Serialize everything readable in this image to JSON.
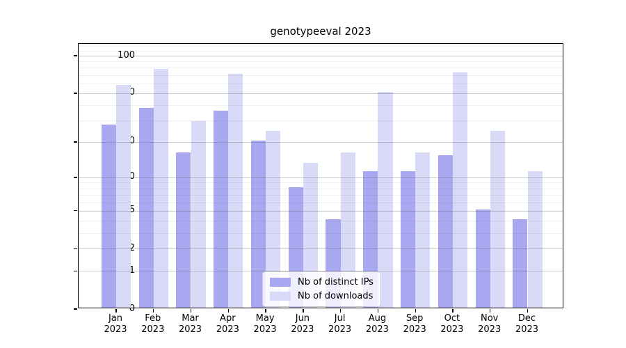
{
  "chart_data": {
    "type": "bar",
    "title": "genotypeeval 2023",
    "categories": [
      "Jan",
      "Feb",
      "Mar",
      "Apr",
      "May",
      "Jun",
      "Jul",
      "Aug",
      "Sep",
      "Oct",
      "Nov",
      "Dec"
    ],
    "year_label": "2023",
    "series": [
      {
        "name": "Nb of distinct IPs",
        "color": "#a8a8f0",
        "values": [
          27,
          37,
          16,
          35,
          20,
          8,
          4,
          11,
          11,
          15,
          5,
          4
        ]
      },
      {
        "name": "Nb of downloads",
        "color": "#d9d9f8",
        "values": [
          57,
          76,
          29,
          70,
          24,
          13,
          16,
          50,
          16,
          72,
          24,
          11
        ]
      }
    ],
    "yscale": "log1p",
    "yticks": [
      0,
      1,
      2,
      5,
      10,
      20,
      50,
      100
    ],
    "ytick_labels": [
      "0",
      "1",
      "2",
      "5",
      "10",
      "20",
      "50",
      "100"
    ],
    "minor_gridlines": [
      3,
      4,
      6,
      7,
      8,
      9,
      30,
      40,
      60,
      70,
      80,
      90,
      110,
      120
    ],
    "ylim": [
      0,
      124
    ],
    "grid": true,
    "legend_position": "inside-bottom-center",
    "axis_color": "#000000",
    "background_color": "#ffffff"
  }
}
